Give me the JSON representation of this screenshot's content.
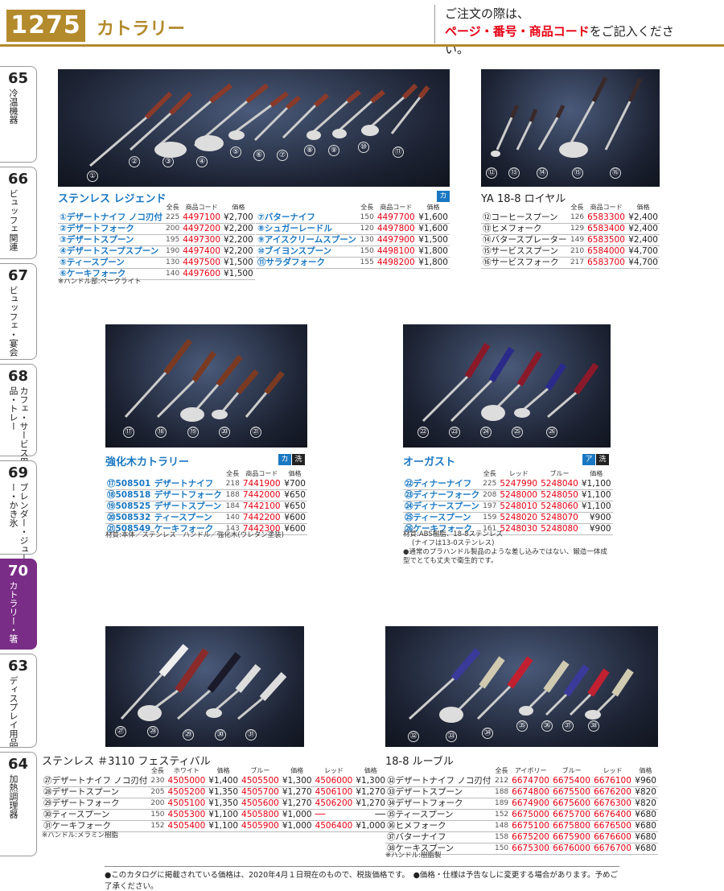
{
  "page": {
    "number": "1275",
    "category": "カトラリー",
    "notice_line1": "ご注文の際は、",
    "notice_red": "ページ・番号・商品コード",
    "notice_rest": "をご記入ください。"
  },
  "tabs": [
    {
      "num": "65",
      "label": "冷温機器"
    },
    {
      "num": "66",
      "label": "ビュッフェ関連"
    },
    {
      "num": "67",
      "label": "ビュッフェ・宴会"
    },
    {
      "num": "68",
      "label": "カフェ・サービス用品・トレー"
    },
    {
      "num": "69",
      "label": "ブレンダー・ジューサー・かき氷"
    },
    {
      "num": "70",
      "label": "カトラリー・箸"
    },
    {
      "num": "63",
      "label": "ディスプレイ用品"
    },
    {
      "num": "64",
      "label": "加熱調理器"
    }
  ],
  "legend": {
    "title": "ステンレス レジェンド",
    "badge": "カ",
    "headers": [
      "全長",
      "商品コード",
      "価格"
    ],
    "items_left": [
      {
        "n": "①",
        "name": "デザートナイフ ノコ刃付",
        "len": "225",
        "code": "4497100",
        "price": "¥2,700"
      },
      {
        "n": "②",
        "name": "デザートフォーク",
        "len": "200",
        "code": "4497200",
        "price": "¥2,200"
      },
      {
        "n": "③",
        "name": "デザートスプーン",
        "len": "195",
        "code": "4497300",
        "price": "¥2,200"
      },
      {
        "n": "④",
        "name": "デザートスープスプーン",
        "len": "190",
        "code": "4497400",
        "price": "¥2,200"
      },
      {
        "n": "⑤",
        "name": "ティースプーン",
        "len": "130",
        "code": "4497500",
        "price": "¥1,500"
      },
      {
        "n": "⑥",
        "name": "ケーキフォーク",
        "len": "140",
        "code": "4497600",
        "price": "¥1,500"
      }
    ],
    "items_right": [
      {
        "n": "⑦",
        "name": "バターナイフ",
        "len": "150",
        "code": "4497700",
        "price": "¥1,600"
      },
      {
        "n": "⑧",
        "name": "シュガーレードル",
        "len": "120",
        "code": "4497800",
        "price": "¥1,600"
      },
      {
        "n": "⑨",
        "name": "アイスクリームスプーン",
        "len": "130",
        "code": "4497900",
        "price": "¥1,500"
      },
      {
        "n": "⑩",
        "name": "ブイヨンスプーン",
        "len": "150",
        "code": "4498100",
        "price": "¥1,800"
      },
      {
        "n": "⑪",
        "name": "サラダフォーク",
        "len": "155",
        "code": "4498200",
        "price": "¥1,800"
      }
    ],
    "note": "※ハンドル部:ベークライト",
    "photo_nums": [
      "①",
      "②",
      "③",
      "④",
      "⑤",
      "⑥",
      "⑦",
      "⑧",
      "⑨",
      "⑩",
      "⑪"
    ]
  },
  "royal": {
    "title": "YA 18-8 ロイヤル",
    "headers": [
      "全長",
      "商品コード",
      "価格"
    ],
    "items": [
      {
        "n": "⑫",
        "name": "コーヒースプーン",
        "len": "126",
        "code": "6583300",
        "price": "¥2,400"
      },
      {
        "n": "⑬",
        "name": "ヒメフォーク",
        "len": "129",
        "code": "6583400",
        "price": "¥2,400"
      },
      {
        "n": "⑭",
        "name": "バタースプレーター",
        "len": "149",
        "code": "6583500",
        "price": "¥2,400"
      },
      {
        "n": "⑮",
        "name": "サービススプーン",
        "len": "210",
        "code": "6584000",
        "price": "¥4,700"
      },
      {
        "n": "⑯",
        "name": "サービスフォーク",
        "len": "217",
        "code": "6583700",
        "price": "¥4,700"
      }
    ],
    "photo_nums": [
      "⑫",
      "⑬",
      "⑭",
      "⑮",
      "⑯"
    ]
  },
  "kyoka": {
    "title": "強化木カトラリー",
    "badge1": "カ",
    "badge2": "洗",
    "headers": [
      "全長",
      "商品コード",
      "価格"
    ],
    "items": [
      {
        "n": "⑰",
        "sub": "508501",
        "name": "デザートナイフ",
        "len": "218",
        "code": "7441900",
        "price": "¥700"
      },
      {
        "n": "⑱",
        "sub": "508518",
        "name": "デザートフォーク",
        "len": "188",
        "code": "7442000",
        "price": "¥650"
      },
      {
        "n": "⑲",
        "sub": "508525",
        "name": "デザートスプーン",
        "len": "184",
        "code": "7442100",
        "price": "¥650"
      },
      {
        "n": "⑳",
        "sub": "508532",
        "name": "ティースプーン",
        "len": "140",
        "code": "7442200",
        "price": "¥600"
      },
      {
        "n": "㉑",
        "sub": "508549",
        "name": "ケーキフォーク",
        "len": "143",
        "code": "7442300",
        "price": "¥600"
      }
    ],
    "note": "材質:本体／ステンレス　ハンドル／強化木(ウレタン塗装)",
    "photo_nums": [
      "⑰",
      "⑱",
      "⑲",
      "⑳",
      "㉑"
    ]
  },
  "august": {
    "title": "オーガスト",
    "badge1": "ア",
    "badge2": "洗",
    "headers": [
      "全長",
      "レッド",
      "ブルー",
      "価格"
    ],
    "items": [
      {
        "n": "㉒",
        "name": "ディナーナイフ",
        "len": "225",
        "red": "5247990",
        "blue": "5248040",
        "price": "¥1,100"
      },
      {
        "n": "㉓",
        "name": "ディナーフォーク",
        "len": "208",
        "red": "5248000",
        "blue": "5248050",
        "price": "¥1,100"
      },
      {
        "n": "㉔",
        "name": "ディナースプーン",
        "len": "197",
        "red": "5248010",
        "blue": "5248060",
        "price": "¥1,100"
      },
      {
        "n": "㉕",
        "name": "ティースプーン",
        "len": "159",
        "red": "5248020",
        "blue": "5248070",
        "price": "¥900"
      },
      {
        "n": "㉖",
        "name": "ケーキフォーク",
        "len": "161",
        "red": "5248030",
        "blue": "5248080",
        "price": "¥900"
      }
    ],
    "note1": "材質:ABS樹脂、18-8ステンレス",
    "note2": "(ナイフは13-0ステンレス)",
    "note3": "●通常のプラハンドル製品のような差し込みではない、鍛造一体成型でとても丈夫で衛生的です。",
    "photo_nums": [
      "㉒",
      "㉓",
      "㉔",
      "㉕",
      "㉖"
    ]
  },
  "festival": {
    "title": "ステンレス ＃3110 フェスティバル",
    "headers": [
      "全長",
      "ホワイト",
      "価格",
      "ブルー",
      "価格",
      "レッド",
      "価格"
    ],
    "items": [
      {
        "n": "㉗",
        "name": "デザートナイフ ノコ刃付",
        "len": "230",
        "w": "4505000",
        "wp": "¥1,400",
        "b": "4505500",
        "bp": "¥1,300",
        "r": "4506000",
        "rp": "¥1,300"
      },
      {
        "n": "㉘",
        "name": "デザートスプーン",
        "len": "205",
        "w": "4505200",
        "wp": "¥1,350",
        "b": "4505700",
        "bp": "¥1,270",
        "r": "4506100",
        "rp": "¥1,270"
      },
      {
        "n": "㉙",
        "name": "デザートフォーク",
        "len": "200",
        "w": "4505100",
        "wp": "¥1,350",
        "b": "4505600",
        "bp": "¥1,270",
        "r": "4506200",
        "rp": "¥1,270"
      },
      {
        "n": "㉚",
        "name": "ティースプーン",
        "len": "150",
        "w": "4505300",
        "wp": "¥1,100",
        "b": "4505800",
        "bp": "¥1,000",
        "r": "──",
        "rp": "──"
      },
      {
        "n": "㉛",
        "name": "ケーキフォーク",
        "len": "152",
        "w": "4505400",
        "wp": "¥1,100",
        "b": "4505900",
        "bp": "¥1,000",
        "r": "4506400",
        "rp": "¥1,000"
      }
    ],
    "note": "※ハンドル:メラミン樹脂",
    "photo_nums": [
      "㉗",
      "㉘",
      "㉙",
      "㉚",
      "㉛"
    ]
  },
  "ruble": {
    "title": "18-8 ルーブル",
    "headers": [
      "全長",
      "アイボリー",
      "ブルー",
      "レッド",
      "価格"
    ],
    "items": [
      {
        "n": "㉜",
        "name": "デザートナイフ ノコ刃付",
        "len": "212",
        "i": "6674700",
        "b": "6675400",
        "r": "6676100",
        "price": "¥960"
      },
      {
        "n": "㉝",
        "name": "デザートスプーン",
        "len": "188",
        "i": "6674800",
        "b": "6675500",
        "r": "6676200",
        "price": "¥820"
      },
      {
        "n": "㉞",
        "name": "デザートフォーク",
        "len": "189",
        "i": "6674900",
        "b": "6675600",
        "r": "6676300",
        "price": "¥820"
      },
      {
        "n": "㉟",
        "name": "ティースプーン",
        "len": "152",
        "i": "6675000",
        "b": "6675700",
        "r": "6676400",
        "price": "¥680"
      },
      {
        "n": "㊱",
        "name": "ヒメフォーク",
        "len": "148",
        "i": "6675100",
        "b": "6675800",
        "r": "6676500",
        "price": "¥680"
      },
      {
        "n": "㊲",
        "name": "バターナイフ",
        "len": "158",
        "i": "6675200",
        "b": "6675900",
        "r": "6676600",
        "price": "¥680"
      },
      {
        "n": "㊳",
        "name": "ケーキスプーン",
        "len": "150",
        "i": "6675300",
        "b": "6676000",
        "r": "6676700",
        "price": "¥680"
      }
    ],
    "note": "※ハンドル:樹脂製",
    "photo_nums": [
      "㉜",
      "㉝",
      "㉞",
      "㉟",
      "㊱",
      "㊲",
      "㊳"
    ]
  },
  "footer": "●このカタログに掲載されている価格は、2020年4月１日現在のもので、税抜価格です。　●価格・仕様は予告なしに変更する場合があります。予めご了承ください。",
  "colors": {
    "gold": "#b38a2c",
    "blue": "#1a78c2",
    "red": "#e60012",
    "purple": "#7a2d86"
  }
}
